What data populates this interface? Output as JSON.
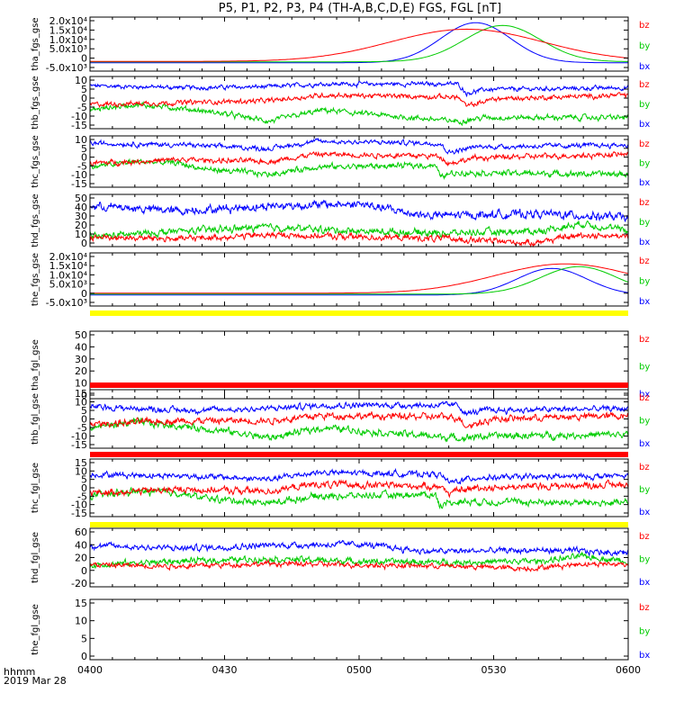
{
  "title": "P5, P1, P2, P3, P4 (TH-A,B,C,D,E) FGS, FGL [nT]",
  "footer": {
    "time_label": "hhmm",
    "date_label": "2019 Mar 28"
  },
  "colors": {
    "bx": "#0000ff",
    "by": "#00cc00",
    "bz": "#ff0000",
    "bar_yellow": "#ffff00",
    "bar_red": "#ff0000"
  },
  "chart_data": {
    "type": "line",
    "x_axis": {
      "ticks": [
        "0400",
        "0430",
        "0500",
        "0530",
        "0600"
      ],
      "range": [
        0,
        120
      ],
      "unit": "minutes"
    },
    "legend": [
      "bz",
      "by",
      "bx"
    ],
    "panels": [
      {
        "ylabel": "tha_fgs_gse",
        "yticks": [
          "2.0x10⁴",
          "1.5x10⁴",
          "1.0x10⁴",
          "5.0x10³",
          "0",
          "-5.0x10³"
        ],
        "ylim": [
          -7000,
          22000
        ],
        "mode": "spike",
        "series": [
          {
            "name": "bx",
            "peak": {
              "t": 86,
              "w": 11,
              "amp": 19000
            },
            "base": -2500
          },
          {
            "name": "by",
            "peak": {
              "t": 92,
              "w": 12,
              "amp": 17500
            },
            "base": -2000
          },
          {
            "name": "bz",
            "peak": {
              "t": 84,
              "w": 24,
              "amp": 15500
            },
            "base": -1800
          }
        ],
        "bar": null
      },
      {
        "ylabel": "thb_fgs_gse",
        "yticks": [
          "10",
          "5",
          "0",
          "-5",
          "-10",
          "-15"
        ],
        "ylim": [
          -16,
          12
        ],
        "mode": "noise",
        "series": [
          {
            "name": "bx",
            "levels": [
              [
                0,
                7
              ],
              [
                22,
                6
              ],
              [
                40,
                6.5
              ],
              [
                52,
                8
              ],
              [
                82,
                8
              ],
              [
                84,
                3
              ],
              [
                88,
                5
              ],
              [
                120,
                6
              ]
            ],
            "noise": 0.8
          },
          {
            "name": "by",
            "levels": [
              [
                0,
                -6
              ],
              [
                10,
                -3
              ],
              [
                20,
                -5
              ],
              [
                30,
                -8
              ],
              [
                40,
                -12
              ],
              [
                52,
                -6
              ],
              [
                66,
                -9
              ],
              [
                82,
                -12
              ],
              [
                88,
                -10
              ],
              [
                120,
                -10
              ]
            ],
            "noise": 1.0
          },
          {
            "name": "bz",
            "levels": [
              [
                0,
                -3
              ],
              [
                20,
                -2
              ],
              [
                40,
                -1
              ],
              [
                52,
                2
              ],
              [
                82,
                1
              ],
              [
                84,
                -4
              ],
              [
                90,
                0
              ],
              [
                120,
                2
              ]
            ],
            "noise": 0.9
          }
        ],
        "bar": null
      },
      {
        "ylabel": "thc_fgs_gse",
        "yticks": [
          "10",
          "5",
          "0",
          "-5",
          "-10",
          "-15"
        ],
        "ylim": [
          -16,
          12
        ],
        "mode": "noise",
        "series": [
          {
            "name": "bx",
            "levels": [
              [
                0,
                8
              ],
              [
                22,
                7
              ],
              [
                40,
                5
              ],
              [
                50,
                9
              ],
              [
                78,
                8
              ],
              [
                80,
                3
              ],
              [
                86,
                6
              ],
              [
                120,
                7
              ]
            ],
            "noise": 0.9
          },
          {
            "name": "by",
            "levels": [
              [
                0,
                -5
              ],
              [
                10,
                -2
              ],
              [
                20,
                -3
              ],
              [
                25,
                -6
              ],
              [
                40,
                -9
              ],
              [
                50,
                -5
              ],
              [
                77,
                -4
              ],
              [
                78,
                -10
              ],
              [
                82,
                -8
              ],
              [
                120,
                -9
              ]
            ],
            "noise": 1.1
          },
          {
            "name": "bz",
            "levels": [
              [
                0,
                -3
              ],
              [
                20,
                -1
              ],
              [
                40,
                -2
              ],
              [
                50,
                2
              ],
              [
                78,
                1
              ],
              [
                80,
                -3
              ],
              [
                86,
                0
              ],
              [
                120,
                2
              ]
            ],
            "noise": 1.0
          }
        ],
        "bar": null
      },
      {
        "ylabel": "thd_fgs_gse",
        "yticks": [
          "50",
          "40",
          "30",
          "20",
          "10",
          "0"
        ],
        "ylim": [
          -2,
          52
        ],
        "mode": "noise",
        "series": [
          {
            "name": "bx",
            "levels": [
              [
                0,
                40
              ],
              [
                20,
                35
              ],
              [
                40,
                40
              ],
              [
                60,
                42
              ],
              [
                75,
                30
              ],
              [
                100,
                32
              ],
              [
                120,
                28
              ]
            ],
            "noise": 3.0
          },
          {
            "name": "by",
            "levels": [
              [
                0,
                8
              ],
              [
                20,
                14
              ],
              [
                40,
                18
              ],
              [
                60,
                14
              ],
              [
                80,
                12
              ],
              [
                100,
                14
              ],
              [
                110,
                22
              ],
              [
                120,
                14
              ]
            ],
            "noise": 2.5
          },
          {
            "name": "bz",
            "levels": [
              [
                0,
                8
              ],
              [
                20,
                6
              ],
              [
                40,
                10
              ],
              [
                60,
                8
              ],
              [
                80,
                6
              ],
              [
                98,
                2
              ],
              [
                110,
                10
              ],
              [
                120,
                9
              ]
            ],
            "noise": 2.2
          }
        ],
        "bar": null
      },
      {
        "ylabel": "the_fgs_gse",
        "yticks": [
          "2.0x10⁴",
          "1.5x10⁴",
          "1.0x10⁴",
          "5.0x10³",
          "0",
          "-5.0x10³"
        ],
        "ylim": [
          -7000,
          22000
        ],
        "mode": "spike",
        "series": [
          {
            "name": "bx",
            "peak": {
              "t": 103,
              "w": 11,
              "amp": 13500
            },
            "base": -1000
          },
          {
            "name": "by",
            "peak": {
              "t": 109,
              "w": 12,
              "amp": 14500
            },
            "base": -500
          },
          {
            "name": "bz",
            "peak": {
              "t": 106,
              "w": 22,
              "amp": 16000
            },
            "base": 0
          }
        ],
        "bar": "yellow"
      },
      {
        "ylabel": "tha_fgl_gse",
        "yticks": [
          "50",
          "40",
          "30",
          "20",
          "10",
          "0"
        ],
        "ylim": [
          -3,
          53
        ],
        "mode": "empty",
        "series": [],
        "bar": "red"
      },
      {
        "ylabel": "thb_fgl_gse",
        "yticks": [
          "15",
          "10",
          "5",
          "0",
          "-5",
          "-10",
          "-15"
        ],
        "ylim": [
          -17,
          17
        ],
        "mode": "noise",
        "series": [
          {
            "name": "bx",
            "levels": [
              [
                0,
                7
              ],
              [
                22,
                5
              ],
              [
                40,
                6
              ],
              [
                52,
                8
              ],
              [
                82,
                8
              ],
              [
                84,
                3
              ],
              [
                88,
                5
              ],
              [
                120,
                6
              ]
            ],
            "noise": 1.2
          },
          {
            "name": "by",
            "levels": [
              [
                0,
                -5
              ],
              [
                10,
                -2
              ],
              [
                20,
                -4
              ],
              [
                30,
                -7
              ],
              [
                40,
                -11
              ],
              [
                52,
                -5
              ],
              [
                66,
                -8
              ],
              [
                82,
                -11
              ],
              [
                88,
                -10
              ],
              [
                120,
                -9
              ]
            ],
            "noise": 1.4
          },
          {
            "name": "bz",
            "levels": [
              [
                0,
                -3
              ],
              [
                20,
                -1
              ],
              [
                40,
                -1
              ],
              [
                52,
                2
              ],
              [
                82,
                1
              ],
              [
                84,
                -4
              ],
              [
                90,
                0
              ],
              [
                120,
                2
              ]
            ],
            "noise": 1.4
          }
        ],
        "bar": "red"
      },
      {
        "ylabel": "thc_fgl_gse",
        "yticks": [
          "15",
          "10",
          "5",
          "0",
          "-5",
          "-10",
          "-15"
        ],
        "ylim": [
          -17,
          17
        ],
        "mode": "noise",
        "series": [
          {
            "name": "bx",
            "levels": [
              [
                0,
                8
              ],
              [
                22,
                7
              ],
              [
                40,
                5
              ],
              [
                50,
                9
              ],
              [
                78,
                8
              ],
              [
                80,
                3
              ],
              [
                86,
                6
              ],
              [
                120,
                7
              ]
            ],
            "noise": 1.2
          },
          {
            "name": "by",
            "levels": [
              [
                0,
                -5
              ],
              [
                10,
                -2
              ],
              [
                20,
                -3
              ],
              [
                25,
                -6
              ],
              [
                40,
                -9
              ],
              [
                50,
                -5
              ],
              [
                77,
                -4
              ],
              [
                78,
                -10
              ],
              [
                82,
                -8
              ],
              [
                120,
                -9
              ]
            ],
            "noise": 1.4
          },
          {
            "name": "bz",
            "levels": [
              [
                0,
                -3
              ],
              [
                20,
                -1
              ],
              [
                40,
                -2
              ],
              [
                50,
                2
              ],
              [
                78,
                1
              ],
              [
                80,
                -3
              ],
              [
                86,
                0
              ],
              [
                120,
                2
              ]
            ],
            "noise": 1.4
          }
        ],
        "bar": "yellow"
      },
      {
        "ylabel": "thd_fgl_gse",
        "yticks": [
          "60",
          "40",
          "20",
          "0",
          "-20"
        ],
        "ylim": [
          -28,
          68
        ],
        "mode": "noise",
        "series": [
          {
            "name": "bx",
            "levels": [
              [
                0,
                40
              ],
              [
                20,
                35
              ],
              [
                40,
                40
              ],
              [
                60,
                42
              ],
              [
                75,
                30
              ],
              [
                100,
                32
              ],
              [
                120,
                28
              ]
            ],
            "noise": 3.5
          },
          {
            "name": "by",
            "levels": [
              [
                0,
                8
              ],
              [
                20,
                14
              ],
              [
                40,
                18
              ],
              [
                60,
                14
              ],
              [
                80,
                12
              ],
              [
                100,
                14
              ],
              [
                110,
                22
              ],
              [
                120,
                14
              ]
            ],
            "noise": 3.5
          },
          {
            "name": "bz",
            "levels": [
              [
                0,
                8
              ],
              [
                20,
                6
              ],
              [
                40,
                10
              ],
              [
                60,
                8
              ],
              [
                80,
                6
              ],
              [
                98,
                2
              ],
              [
                110,
                10
              ],
              [
                120,
                9
              ]
            ],
            "noise": 3.0
          }
        ],
        "bar": null
      },
      {
        "ylabel": "the_fgl_gse",
        "yticks": [
          "15",
          "10",
          "5",
          "0"
        ],
        "ylim": [
          -2,
          17
        ],
        "mode": "empty",
        "series": [],
        "bar": null
      }
    ]
  }
}
